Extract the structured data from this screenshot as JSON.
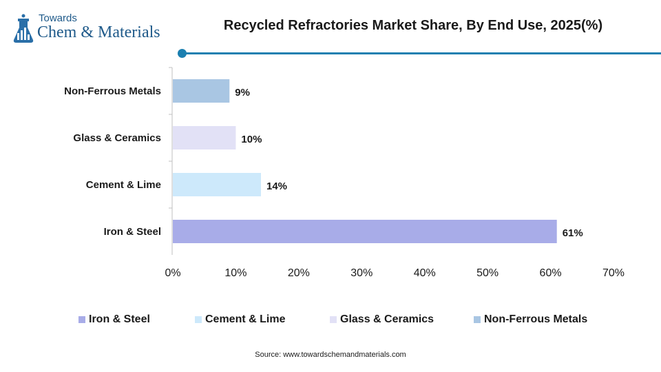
{
  "brand": {
    "line1": "Towards",
    "line2": "Chem & Materials",
    "color": "#1f5a8a"
  },
  "accent_color": "#1b7fb0",
  "chart_data": {
    "type": "bar",
    "orientation": "horizontal",
    "title": "Recycled Refractories Market Share, By End Use, 2025(%)",
    "categories": [
      "Non-Ferrous Metals",
      "Glass & Ceramics",
      "Cement & Lime",
      "Iron & Steel"
    ],
    "values": [
      9,
      10,
      14,
      61
    ],
    "value_labels": [
      "9%",
      "10%",
      "14%",
      "61%"
    ],
    "colors": [
      "#a9c6e3",
      "#e2e1f6",
      "#cde9fb",
      "#a8ace8"
    ],
    "xlim": [
      0,
      70
    ],
    "xticks": [
      0,
      10,
      20,
      30,
      40,
      50,
      60,
      70
    ],
    "xtick_labels": [
      "0%",
      "10%",
      "20%",
      "30%",
      "40%",
      "50%",
      "60%",
      "70%"
    ],
    "grid": false,
    "legend_position": "bottom",
    "legend": [
      {
        "label": "Iron & Steel",
        "color": "#a8ace8"
      },
      {
        "label": "Cement & Lime",
        "color": "#cde9fb"
      },
      {
        "label": "Glass & Ceramics",
        "color": "#e2e1f6"
      },
      {
        "label": "Non-Ferrous Metals",
        "color": "#a9c6e3"
      }
    ]
  },
  "source": "Source: www.towardschemandmaterials.com"
}
